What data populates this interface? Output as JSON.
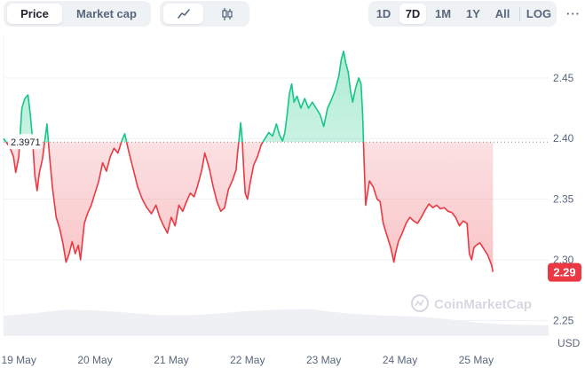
{
  "toolbar": {
    "metric_tabs": [
      {
        "label": "Price",
        "active": true
      },
      {
        "label": "Market cap",
        "active": false
      }
    ],
    "chart_style_tabs": [
      {
        "icon": "line-chart-icon",
        "active": true
      },
      {
        "icon": "candlestick-chart-icon",
        "active": false
      }
    ],
    "range_tabs": [
      {
        "label": "1D",
        "active": false
      },
      {
        "label": "7D",
        "active": true
      },
      {
        "label": "1M",
        "active": false
      },
      {
        "label": "1Y",
        "active": false
      },
      {
        "label": "All",
        "active": false
      }
    ],
    "log_label": "LOG",
    "more_label": "···"
  },
  "watermark": "CoinMarketCap",
  "colors": {
    "up": "#16c784",
    "down": "#ea3943",
    "grid": "#eff2f5",
    "text": "#58667e",
    "volume": "#eef0f4"
  },
  "chart_data": {
    "type": "area",
    "baseline": {
      "value": 2.3971,
      "label": "2.3971"
    },
    "current_price": {
      "value": 2.29,
      "label": "2.29"
    },
    "y_ticks": [
      2.25,
      2.3,
      2.35,
      2.4,
      2.45
    ],
    "y_tick_labels": [
      "2.25",
      "2.30",
      "2.35",
      "2.40",
      "2.45"
    ],
    "y_unit_label": "USD",
    "ylim": [
      2.24,
      2.485
    ],
    "xlim": [
      18.8,
      25.95
    ],
    "x_tick_labels": [
      {
        "day": 19,
        "label": "19 May"
      },
      {
        "day": 20,
        "label": "20 May"
      },
      {
        "day": 21,
        "label": "21 May"
      },
      {
        "day": 22,
        "label": "22 May"
      },
      {
        "day": 23,
        "label": "23 May"
      },
      {
        "day": 24,
        "label": "24 May"
      },
      {
        "day": 25,
        "label": "25 May"
      }
    ],
    "x_unit": "day of May",
    "price": [
      [
        18.8,
        2.4
      ],
      [
        18.88,
        2.393
      ],
      [
        18.93,
        2.385
      ],
      [
        18.96,
        2.372
      ],
      [
        19.0,
        2.385
      ],
      [
        19.04,
        2.425
      ],
      [
        19.08,
        2.433
      ],
      [
        19.12,
        2.436
      ],
      [
        19.15,
        2.42
      ],
      [
        19.18,
        2.4
      ],
      [
        19.21,
        2.37
      ],
      [
        19.24,
        2.357
      ],
      [
        19.27,
        2.372
      ],
      [
        19.31,
        2.383
      ],
      [
        19.34,
        2.398
      ],
      [
        19.37,
        2.412
      ],
      [
        19.4,
        2.388
      ],
      [
        19.44,
        2.36
      ],
      [
        19.49,
        2.335
      ],
      [
        19.54,
        2.325
      ],
      [
        19.58,
        2.313
      ],
      [
        19.62,
        2.298
      ],
      [
        19.66,
        2.305
      ],
      [
        19.7,
        2.315
      ],
      [
        19.74,
        2.305
      ],
      [
        19.78,
        2.312
      ],
      [
        19.81,
        2.3
      ],
      [
        19.86,
        2.33
      ],
      [
        19.9,
        2.338
      ],
      [
        19.95,
        2.345
      ],
      [
        20.0,
        2.355
      ],
      [
        20.05,
        2.365
      ],
      [
        20.1,
        2.38
      ],
      [
        20.15,
        2.373
      ],
      [
        20.2,
        2.385
      ],
      [
        20.25,
        2.392
      ],
      [
        20.3,
        2.388
      ],
      [
        20.35,
        2.398
      ],
      [
        20.39,
        2.404
      ],
      [
        20.44,
        2.39
      ],
      [
        20.5,
        2.375
      ],
      [
        20.56,
        2.36
      ],
      [
        20.62,
        2.35
      ],
      [
        20.68,
        2.343
      ],
      [
        20.74,
        2.338
      ],
      [
        20.8,
        2.345
      ],
      [
        20.85,
        2.335
      ],
      [
        20.9,
        2.328
      ],
      [
        20.95,
        2.322
      ],
      [
        21.0,
        2.335
      ],
      [
        21.05,
        2.328
      ],
      [
        21.1,
        2.345
      ],
      [
        21.15,
        2.34
      ],
      [
        21.2,
        2.348
      ],
      [
        21.25,
        2.355
      ],
      [
        21.3,
        2.352
      ],
      [
        21.35,
        2.362
      ],
      [
        21.4,
        2.374
      ],
      [
        21.44,
        2.388
      ],
      [
        21.5,
        2.375
      ],
      [
        21.55,
        2.36
      ],
      [
        21.6,
        2.348
      ],
      [
        21.65,
        2.34
      ],
      [
        21.7,
        2.343
      ],
      [
        21.75,
        2.358
      ],
      [
        21.8,
        2.365
      ],
      [
        21.85,
        2.374
      ],
      [
        21.87,
        2.388
      ],
      [
        21.89,
        2.4
      ],
      [
        21.91,
        2.413
      ],
      [
        21.93,
        2.4
      ],
      [
        21.95,
        2.375
      ],
      [
        21.97,
        2.355
      ],
      [
        22.0,
        2.35
      ],
      [
        22.04,
        2.365
      ],
      [
        22.08,
        2.378
      ],
      [
        22.13,
        2.385
      ],
      [
        22.18,
        2.395
      ],
      [
        22.23,
        2.4
      ],
      [
        22.28,
        2.405
      ],
      [
        22.33,
        2.402
      ],
      [
        22.38,
        2.412
      ],
      [
        22.42,
        2.403
      ],
      [
        22.46,
        2.398
      ],
      [
        22.49,
        2.405
      ],
      [
        22.52,
        2.42
      ],
      [
        22.55,
        2.437
      ],
      [
        22.58,
        2.445
      ],
      [
        22.61,
        2.43
      ],
      [
        22.65,
        2.435
      ],
      [
        22.7,
        2.425
      ],
      [
        22.75,
        2.433
      ],
      [
        22.8,
        2.425
      ],
      [
        22.85,
        2.43
      ],
      [
        22.9,
        2.425
      ],
      [
        22.95,
        2.42
      ],
      [
        23.0,
        2.41
      ],
      [
        23.05,
        2.425
      ],
      [
        23.1,
        2.432
      ],
      [
        23.15,
        2.44
      ],
      [
        23.2,
        2.452
      ],
      [
        23.23,
        2.465
      ],
      [
        23.26,
        2.472
      ],
      [
        23.29,
        2.462
      ],
      [
        23.32,
        2.455
      ],
      [
        23.35,
        2.44
      ],
      [
        23.38,
        2.43
      ],
      [
        23.42,
        2.442
      ],
      [
        23.46,
        2.45
      ],
      [
        23.49,
        2.445
      ],
      [
        23.51,
        2.42
      ],
      [
        23.53,
        2.38
      ],
      [
        23.55,
        2.345
      ],
      [
        23.6,
        2.365
      ],
      [
        23.65,
        2.36
      ],
      [
        23.7,
        2.35
      ],
      [
        23.74,
        2.348
      ],
      [
        23.78,
        2.33
      ],
      [
        23.83,
        2.32
      ],
      [
        23.88,
        2.31
      ],
      [
        23.92,
        2.298
      ],
      [
        23.94,
        2.305
      ],
      [
        23.98,
        2.315
      ],
      [
        24.03,
        2.322
      ],
      [
        24.08,
        2.33
      ],
      [
        24.13,
        2.335
      ],
      [
        24.18,
        2.332
      ],
      [
        24.23,
        2.33
      ],
      [
        24.28,
        2.335
      ],
      [
        24.33,
        2.341
      ],
      [
        24.38,
        2.346
      ],
      [
        24.43,
        2.343
      ],
      [
        24.48,
        2.345
      ],
      [
        24.53,
        2.342
      ],
      [
        24.58,
        2.343
      ],
      [
        24.63,
        2.34
      ],
      [
        24.68,
        2.339
      ],
      [
        24.73,
        2.335
      ],
      [
        24.78,
        2.328
      ],
      [
        24.83,
        2.332
      ],
      [
        24.88,
        2.33
      ],
      [
        24.91,
        2.305
      ],
      [
        24.94,
        2.3
      ],
      [
        24.97,
        2.31
      ],
      [
        25.0,
        2.312
      ],
      [
        25.05,
        2.314
      ],
      [
        25.1,
        2.309
      ],
      [
        25.15,
        2.304
      ],
      [
        25.2,
        2.296
      ],
      [
        25.22,
        2.29
      ]
    ],
    "volume": [
      [
        18.8,
        0.55
      ],
      [
        19.2,
        0.62
      ],
      [
        19.6,
        0.72
      ],
      [
        20.0,
        0.7
      ],
      [
        20.4,
        0.64
      ],
      [
        20.8,
        0.57
      ],
      [
        21.2,
        0.56
      ],
      [
        21.6,
        0.61
      ],
      [
        22.0,
        0.68
      ],
      [
        22.4,
        0.72
      ],
      [
        22.8,
        0.74
      ],
      [
        23.1,
        0.66
      ],
      [
        23.4,
        0.6
      ],
      [
        23.8,
        0.55
      ],
      [
        24.2,
        0.53
      ],
      [
        24.6,
        0.46
      ],
      [
        25.0,
        0.36
      ],
      [
        25.4,
        0.3
      ],
      [
        25.95,
        0.28
      ]
    ]
  }
}
